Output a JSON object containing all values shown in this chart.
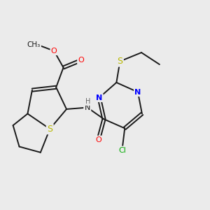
{
  "bg_color": "#ebebeb",
  "bond_color": "#1a1a1a",
  "atom_colors": {
    "S": "#b8b800",
    "N": "#0000ff",
    "O": "#ff0000",
    "Cl": "#00aa00",
    "H": "#666666",
    "C": "#1a1a1a"
  },
  "font_size_atom": 8,
  "figsize": [
    3.0,
    3.0
  ],
  "dpi": 100
}
